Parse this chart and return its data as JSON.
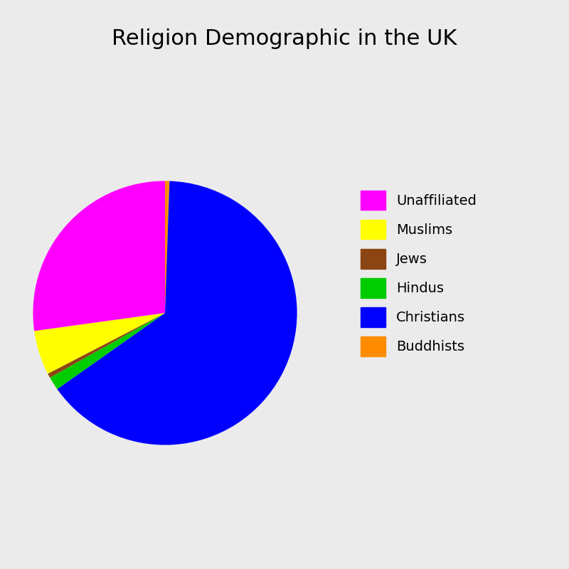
{
  "title": "Religion Demographic in the UK",
  "title_fontsize": 22,
  "labels": [
    "Buddhists",
    "Christians",
    "Hindus",
    "Jews",
    "Muslims",
    "Unaffiliated"
  ],
  "values": [
    0.5,
    59.5,
    1.5,
    0.5,
    5.0,
    25.0
  ],
  "colors": [
    "#FF8C00",
    "#0000FF",
    "#00CC00",
    "#8B4513",
    "#FFFF00",
    "#FF00FF"
  ],
  "background_color": "#EBEBEB",
  "legend_fontsize": 14,
  "startangle": 90,
  "wedge_linewidth": 0,
  "wedge_edgecolor": "white"
}
